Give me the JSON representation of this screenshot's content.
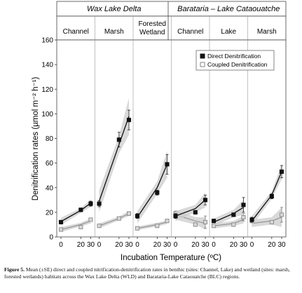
{
  "chart_data": {
    "type": "scatter",
    "ylabel": "Denitrification rates (µmol m⁻² h⁻¹)",
    "xlabel": "Incubation Temperature (ºC)",
    "ylim": [
      0,
      160
    ],
    "yticks": [
      "0",
      "20",
      "40",
      "60",
      "80",
      "100",
      "120",
      "140",
      "160"
    ],
    "xticks": [
      "0",
      "20",
      "30"
    ],
    "x": [
      0,
      20,
      30
    ],
    "legend": {
      "position": "top-right",
      "entries": [
        "Direct Denitrification",
        "Coupled Denitrification"
      ]
    },
    "groups": [
      {
        "name": "Wax Lake Delta",
        "panels": [
          0,
          1,
          2
        ]
      },
      {
        "name": "Barataria – Lake Cataouatche",
        "panels": [
          3,
          4,
          5
        ]
      }
    ],
    "panels": [
      {
        "name": "Channel",
        "direct": {
          "values": [
            12,
            22,
            27
          ],
          "err": [
            1.5,
            1.5,
            2
          ],
          "fit": [
            12.5,
            21.5,
            27.5
          ],
          "band": [
            3,
            2,
            3
          ]
        },
        "coupled": {
          "values": [
            6,
            8,
            14
          ],
          "err": [
            1,
            1,
            1
          ],
          "fit": [
            6,
            10,
            13
          ],
          "band": [
            2,
            1.5,
            2
          ]
        }
      },
      {
        "name": "Marsh",
        "direct": {
          "values": [
            27,
            79,
            95
          ],
          "err": [
            2.5,
            6,
            8
          ],
          "fit": [
            29,
            75,
            98
          ],
          "band": [
            9,
            7,
            15
          ]
        },
        "coupled": {
          "values": [
            9,
            15,
            19
          ],
          "err": [
            1,
            1,
            1.5
          ],
          "fit": [
            9,
            15,
            19
          ],
          "band": [
            2,
            1.5,
            2
          ]
        }
      },
      {
        "name": "Forested Wetland",
        "direct": {
          "values": [
            17,
            36,
            59
          ],
          "err": [
            2,
            2,
            8
          ],
          "fit": [
            16,
            40,
            59
          ],
          "band": [
            5,
            5,
            11
          ]
        },
        "coupled": {
          "values": [
            7,
            9,
            13
          ],
          "err": [
            1,
            1,
            1
          ],
          "fit": [
            7,
            10,
            12
          ],
          "band": [
            1.5,
            1.5,
            1.5
          ]
        }
      },
      {
        "name": "Channel",
        "direct": {
          "values": [
            17,
            20,
            30
          ],
          "err": [
            2,
            1.5,
            4
          ],
          "fit": [
            17,
            23,
            30
          ],
          "band": [
            4,
            3,
            6
          ]
        },
        "coupled": {
          "values": [
            19,
            10,
            12
          ],
          "err": [
            2,
            1,
            5
          ],
          "fit": [
            18,
            13,
            11
          ],
          "band": [
            4,
            3,
            5
          ]
        }
      },
      {
        "name": "Lake",
        "direct": {
          "values": [
            13,
            18,
            26
          ],
          "err": [
            1.5,
            1.5,
            6
          ],
          "fit": [
            12,
            19,
            24
          ],
          "band": [
            3,
            3,
            6
          ]
        },
        "coupled": {
          "values": [
            9,
            10,
            16
          ],
          "err": [
            1,
            1,
            3
          ],
          "fit": [
            9,
            11,
            14
          ],
          "band": [
            2,
            2,
            3
          ]
        }
      },
      {
        "name": "Marsh",
        "direct": {
          "values": [
            14,
            33,
            53
          ],
          "err": [
            2,
            2,
            5
          ],
          "fit": [
            13,
            34,
            53
          ],
          "band": [
            4,
            3,
            6
          ]
        },
        "coupled": {
          "values": [
            13,
            12,
            18
          ],
          "err": [
            1.5,
            1,
            6
          ],
          "fit": [
            11,
            13,
            16
          ],
          "band": [
            3,
            3,
            8
          ]
        }
      }
    ]
  },
  "caption": {
    "label": "Figure 5.",
    "text": " Mean (±SE) direct and coupled nitrification-denitrification rates in benthic (sites: Channel, Lake) and wetland (sites: marsh, forested wetlands) habitats across the Wax Lake Delta (WLD) and Barataria-Lake Cataouatche (BLC) regions."
  },
  "colors": {
    "direct": "#111111",
    "coupled": "#888888",
    "coupled_fill": "#d8d8d8",
    "band": "#cccccc",
    "header_bg": "#eeeeee"
  }
}
